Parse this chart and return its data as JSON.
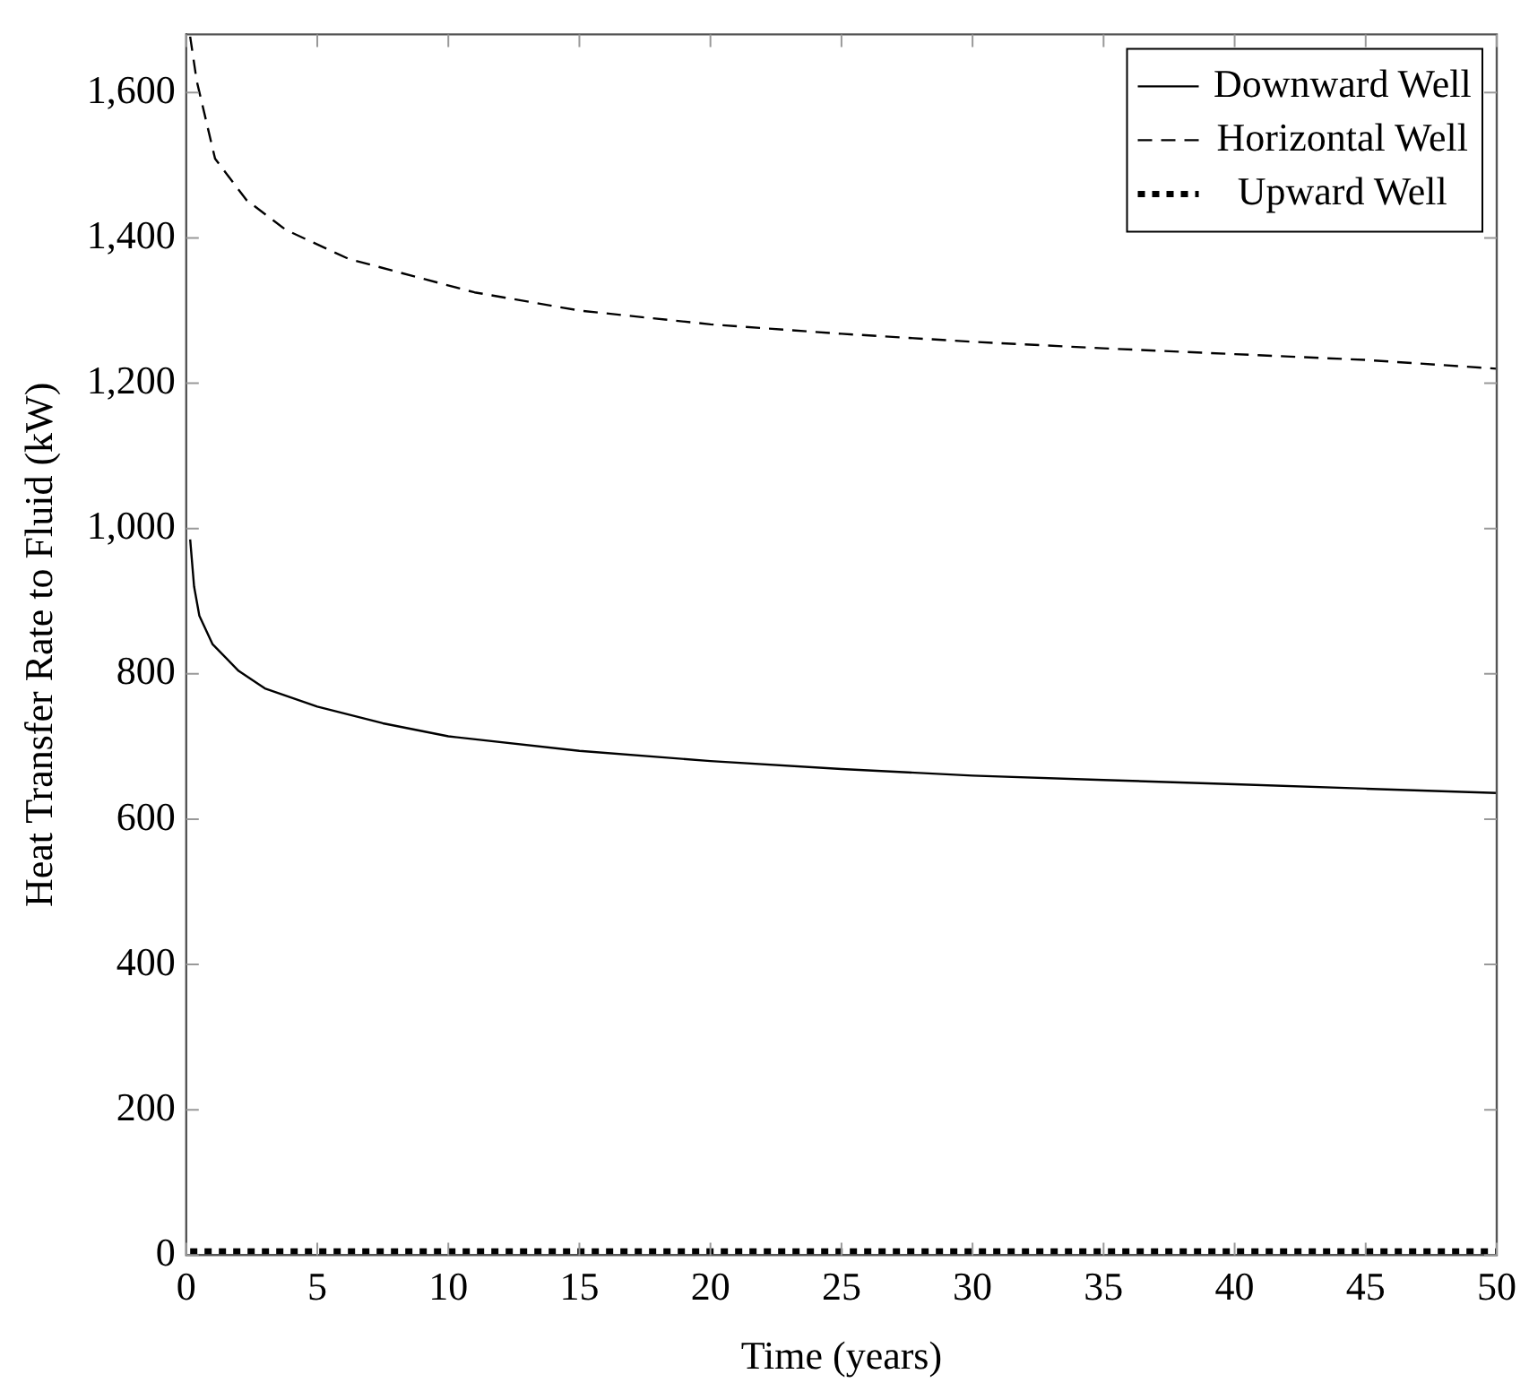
{
  "chart_data": {
    "type": "line",
    "xlabel": "Time (years)",
    "ylabel": "Heat Transfer Rate to Fluid (kW)",
    "xlim": [
      0,
      50
    ],
    "xticks": [
      0,
      5,
      10,
      15,
      20,
      25,
      30,
      35,
      40,
      45,
      50
    ],
    "ylim": [
      0,
      1680
    ],
    "yticks": [
      0,
      200,
      400,
      {
        "value": 600,
        "label": "600"
      },
      800,
      {
        "value": 1000,
        "label": "1,000"
      },
      {
        "value": 1200,
        "label": "1,200"
      },
      {
        "value": 1400,
        "label": "1,400"
      },
      {
        "value": 1600,
        "label": "1,600"
      }
    ],
    "grid": false,
    "legend": "top right",
    "marker": "none",
    "series": [
      {
        "name": "Downward Well",
        "color": "#000000",
        "line_style": "solid",
        "x": [
          0.15,
          0.3,
          0.5,
          1,
          2,
          3,
          5,
          7.5,
          10,
          15,
          20,
          25,
          30,
          35,
          40,
          45,
          50
        ],
        "values": [
          985,
          920,
          880,
          841,
          804,
          780,
          755,
          732,
          714,
          694,
          680,
          669,
          660,
          654,
          648,
          642,
          636
        ]
      },
      {
        "name": "Horizontal Well",
        "color": "#000000",
        "line_style": "dashed",
        "x": [
          0.15,
          0.4,
          1.1,
          2.3,
          3.8,
          6.2,
          8.7,
          11,
          15,
          20,
          25,
          30,
          35,
          40,
          45,
          50
        ],
        "values": [
          1677,
          1616,
          1509,
          1452,
          1411,
          1371,
          1347,
          1325,
          1300,
          1281,
          1268,
          1257,
          1248,
          1240,
          1232,
          1220
        ]
      },
      {
        "name": "Upward Well",
        "color": "#000000",
        "line_style": "dotted",
        "x": [
          0.15,
          10,
          20,
          30,
          40,
          50
        ],
        "values": [
          5,
          5,
          5,
          5,
          5,
          5
        ]
      }
    ]
  }
}
